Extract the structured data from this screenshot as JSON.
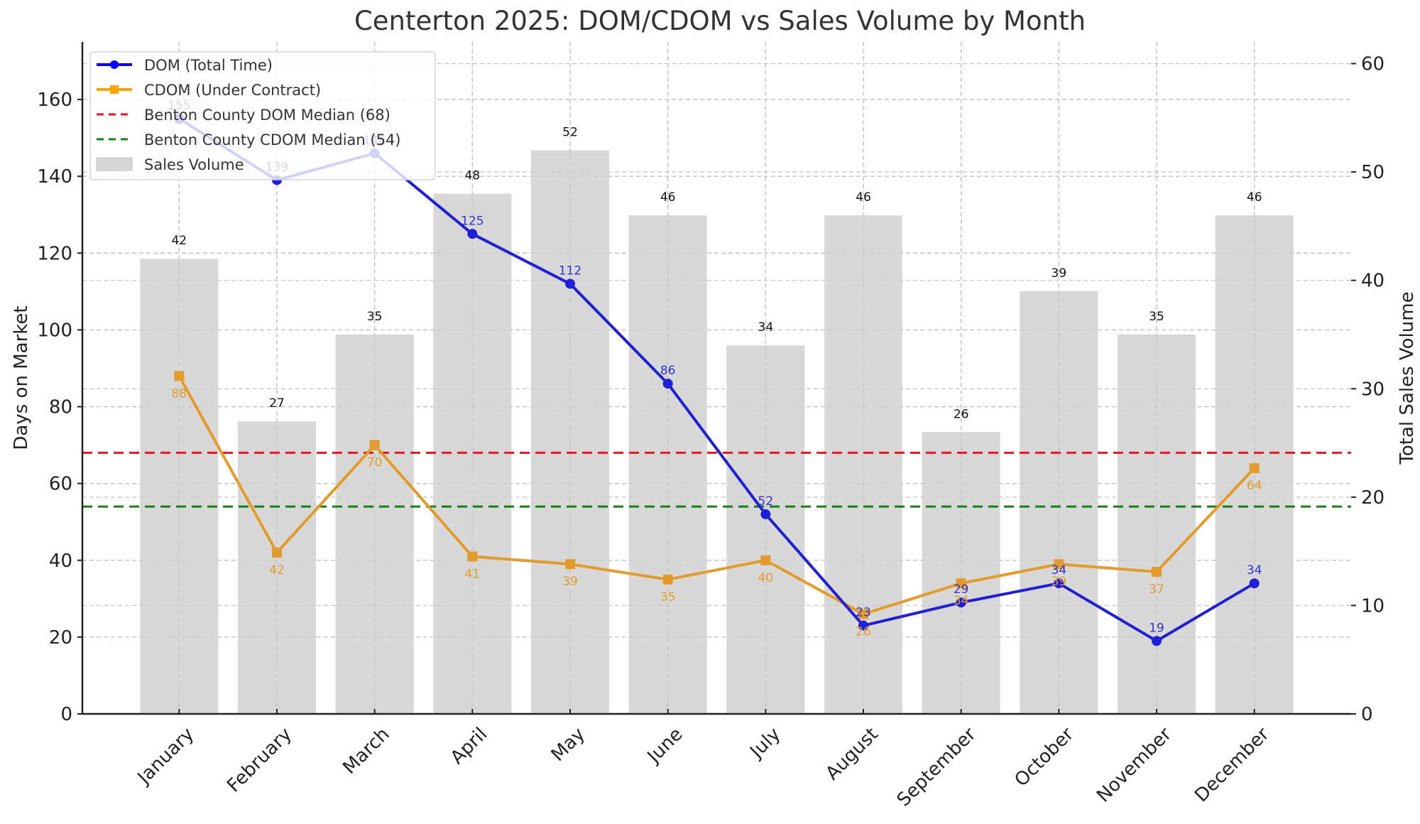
{
  "chart_data": {
    "type": "bar+line",
    "title": "Centerton 2025: DOM/CDOM vs Sales Volume by Month",
    "xlabel": "",
    "ylabel_left": "Days on Market",
    "ylabel_right": "Total Sales Volume",
    "categories": [
      "January",
      "February",
      "March",
      "April",
      "May",
      "June",
      "July",
      "August",
      "September",
      "October",
      "November",
      "December"
    ],
    "ylim_left": [
      0,
      175
    ],
    "ylim_right": [
      0,
      62
    ],
    "yticks_left": [
      0,
      20,
      40,
      60,
      80,
      100,
      120,
      140,
      160
    ],
    "yticks_right": [
      0,
      10,
      20,
      30,
      40,
      50,
      60
    ],
    "grid": true,
    "legend_position": "top-left",
    "series": [
      {
        "name": "DOM (Total Time)",
        "kind": "line",
        "axis": "left",
        "marker": "circle",
        "color": "#1f1fd6",
        "label_color": "#3333cc",
        "values": [
          155,
          139,
          146,
          125,
          112,
          86,
          52,
          23,
          29,
          34,
          19,
          34
        ]
      },
      {
        "name": "CDOM (Under Contract)",
        "kind": "line",
        "axis": "left",
        "marker": "square",
        "color": "#e39b2c",
        "label_color": "#e39b2c",
        "values": [
          88,
          42,
          70,
          41,
          39,
          35,
          40,
          26,
          34,
          39,
          37,
          64
        ]
      },
      {
        "name": "Sales Volume",
        "kind": "bar",
        "axis": "right",
        "color": "#d6d6d6",
        "values": [
          42,
          27,
          35,
          48,
          52,
          46,
          34,
          46,
          26,
          39,
          35,
          46
        ]
      }
    ],
    "reference_lines": [
      {
        "name": "Benton County DOM Median (68)",
        "value": 68,
        "axis": "left",
        "color": "#e8141e",
        "style": "dashed"
      },
      {
        "name": "Benton County CDOM Median (54)",
        "value": 54,
        "axis": "left",
        "color": "#168016",
        "style": "dashed"
      }
    ]
  }
}
